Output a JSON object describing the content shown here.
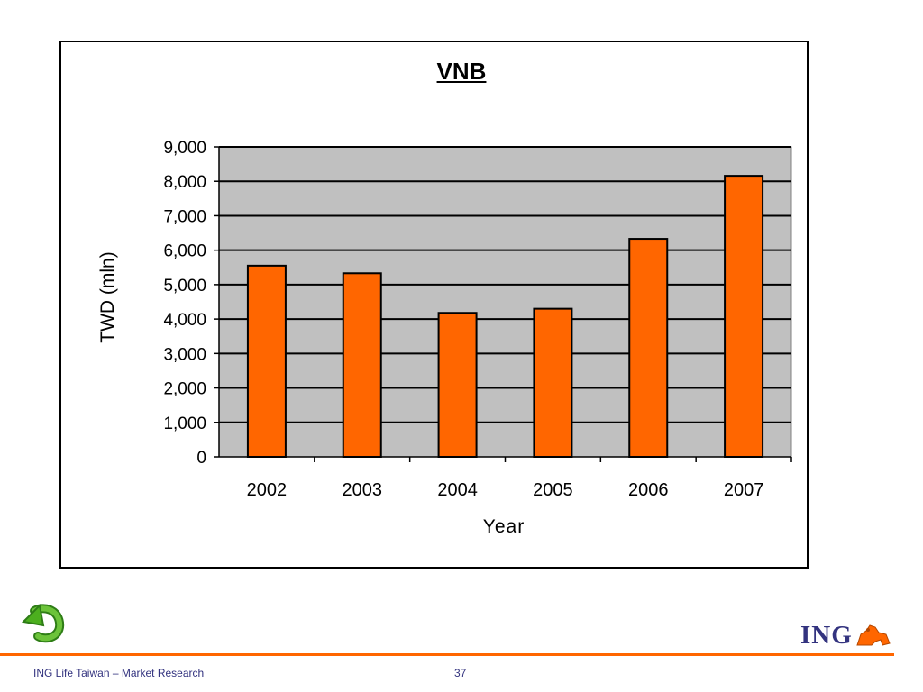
{
  "chart_data": {
    "type": "bar",
    "title": "VNB",
    "xlabel": "Year",
    "ylabel": "TWD (mln)",
    "categories": [
      "2002",
      "2003",
      "2004",
      "2005",
      "2006",
      "2007"
    ],
    "values": [
      5550,
      5330,
      4180,
      4300,
      6330,
      8160
    ],
    "ylim": [
      0,
      9000
    ],
    "yticks": [
      "0",
      "1,000",
      "2,000",
      "3,000",
      "4,000",
      "5,000",
      "6,000",
      "7,000",
      "8,000",
      "9,000"
    ],
    "grid": true,
    "legend": "none",
    "colors": {
      "bar": "#ff6600",
      "plot_bg": "#c0c0c0",
      "gridline": "#000000"
    }
  },
  "footer": {
    "left_text": "ING Life Taiwan – Market Research",
    "page_number": "37",
    "rule_color": "#ff6600",
    "text_color": "#33337f"
  },
  "logo": {
    "text": "ING",
    "text_color": "#33337f",
    "lion_color": "#ff6600"
  },
  "back_button": {
    "icon": "back-arrow-icon",
    "color": "#4caf1e"
  }
}
